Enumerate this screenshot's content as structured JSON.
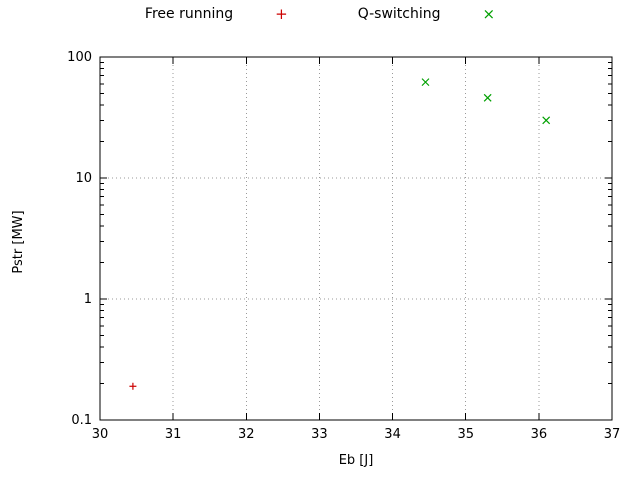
{
  "chart_data": {
    "type": "scatter",
    "title": "",
    "xlabel": "Eb [J]",
    "ylabel": "Pstr [MW]",
    "xlim": [
      30,
      37
    ],
    "ylim": [
      0.1,
      100
    ],
    "xscale": "linear",
    "yscale": "log",
    "grid": "dotted",
    "legend_position": "top-center-outside",
    "xticks": [
      30,
      31,
      32,
      33,
      34,
      35,
      36,
      37
    ],
    "xtick_labels": [
      "30",
      "31",
      "32",
      "33",
      "34",
      "35",
      "36",
      "37"
    ],
    "yticks": [
      0.1,
      1,
      10,
      100
    ],
    "ytick_labels": [
      "0.1",
      "1",
      "10",
      "100"
    ],
    "series": [
      {
        "name": "Free running",
        "marker": "plus",
        "color": "#cc0000",
        "points": [
          [
            30.45,
            0.19
          ]
        ]
      },
      {
        "name": "Q-switching",
        "marker": "cross",
        "color": "#00a000",
        "points": [
          [
            34.45,
            62
          ],
          [
            35.3,
            46
          ],
          [
            36.1,
            30
          ]
        ]
      }
    ]
  }
}
